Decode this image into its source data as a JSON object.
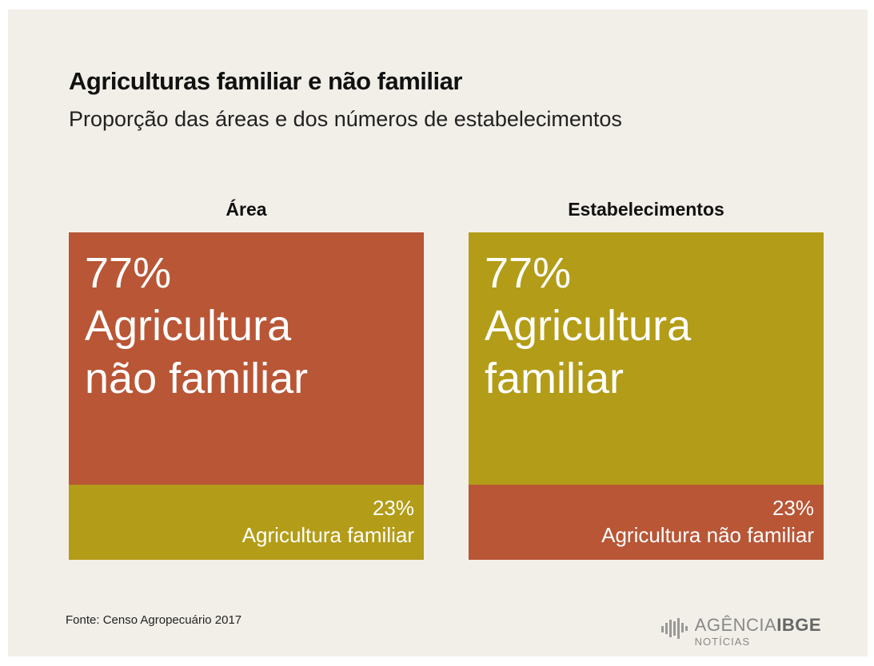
{
  "title": "Agriculturas familiar e não familiar",
  "subtitle": "Proporção das áreas e dos números de estabelecimentos",
  "source": "Fonte: Censo  Agropecuário  2017",
  "brand": {
    "name": "AGÊNCIA",
    "emphasis": "IBGE",
    "sub": "NOTÍCIAS"
  },
  "chart_data": [
    {
      "type": "stacked-bar",
      "title": "Área",
      "series": [
        {
          "name": "Agricultura não familiar",
          "color": "#b85636",
          "values": [
            77
          ],
          "value_labels": [
            "77%"
          ]
        },
        {
          "name": "Agricultura familiar",
          "color": "#b39c17",
          "values": [
            23
          ],
          "value_labels": [
            "23%"
          ]
        }
      ]
    },
    {
      "type": "stacked-bar",
      "title": "Estabelecimentos",
      "series": [
        {
          "name": "Agricultura familiar",
          "color": "#b39c17",
          "values": [
            77
          ],
          "value_labels": [
            "77%"
          ]
        },
        {
          "name": "Agricultura não familiar",
          "color": "#b85636",
          "values": [
            23
          ],
          "value_labels": [
            "23%"
          ]
        }
      ]
    }
  ]
}
